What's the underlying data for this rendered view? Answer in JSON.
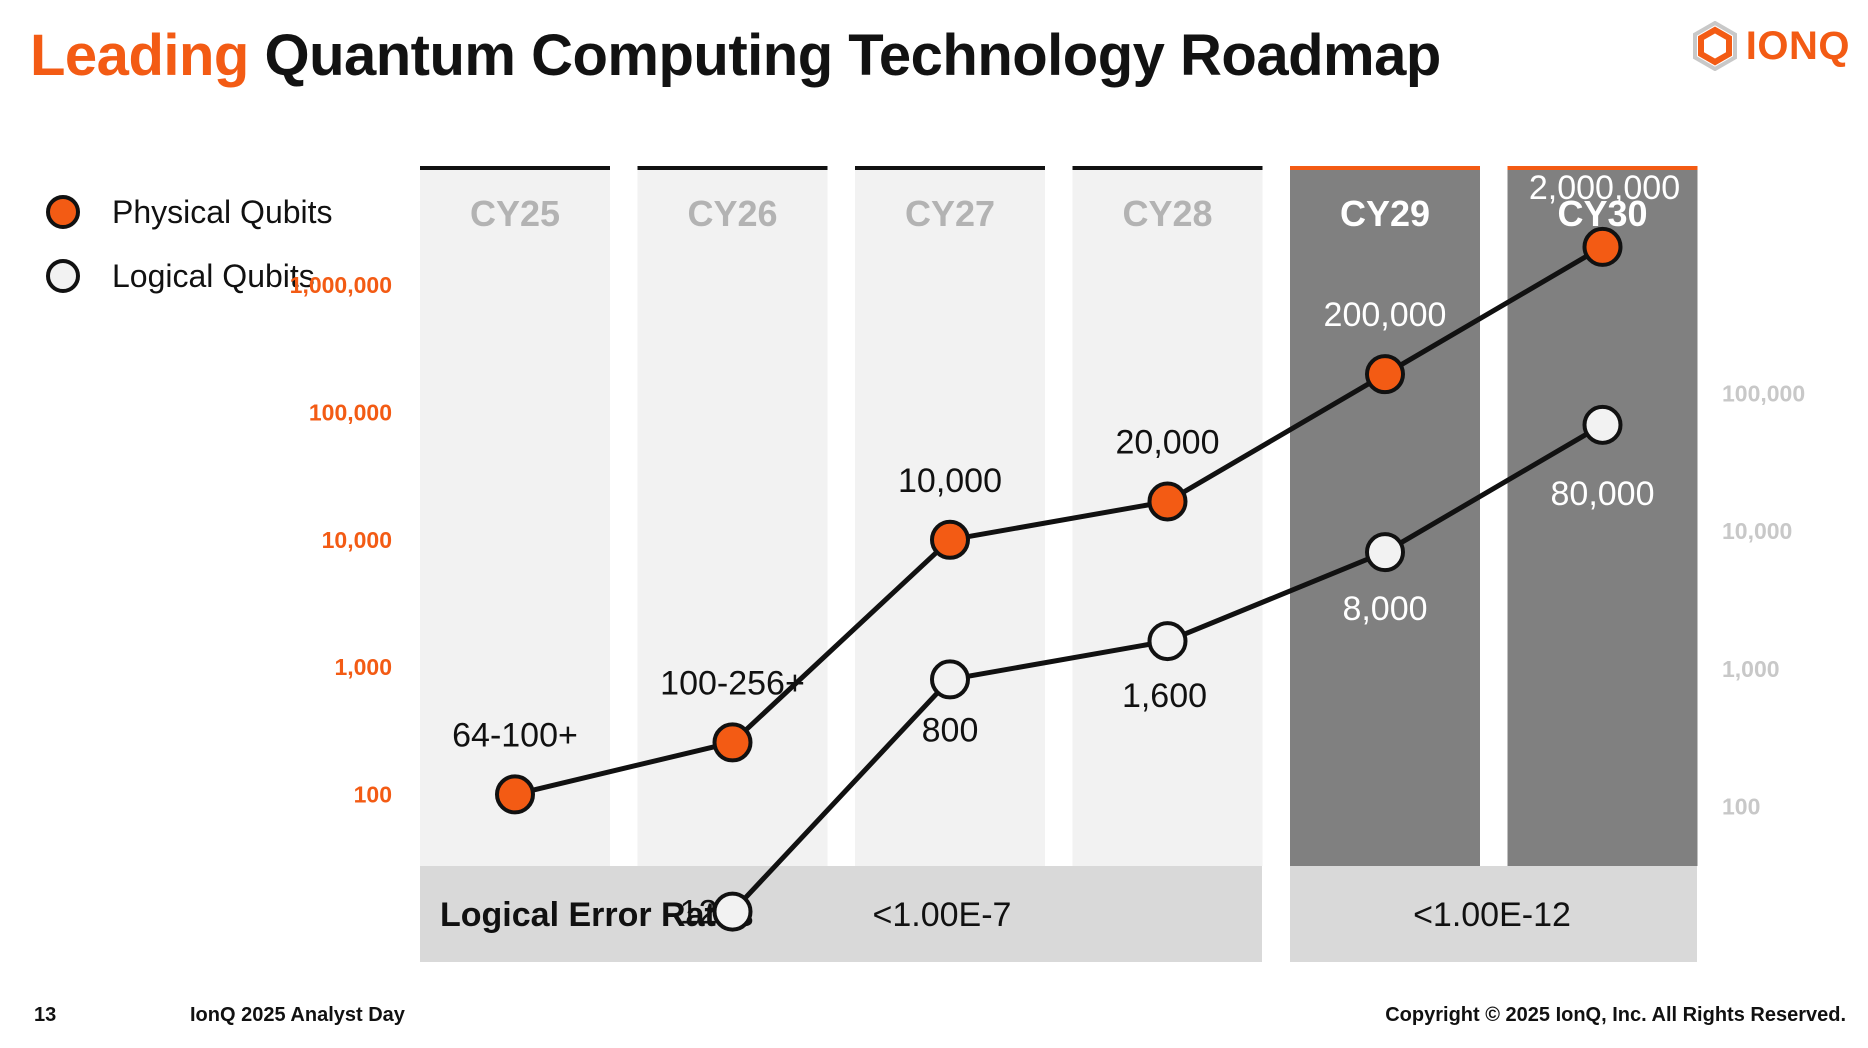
{
  "title": {
    "accent": "Leading",
    "rest": " Quantum Computing Technology Roadmap"
  },
  "logo": {
    "text": "IONQ",
    "icon": "ionq-hexagon-icon"
  },
  "colors": {
    "accent": "#f35b14",
    "dark": "#121212",
    "light_column": "#f2f2f2",
    "dark_column": "#808080",
    "error_bar": "#d9d9d9",
    "right_axis": "#c8c8c8"
  },
  "legend": [
    {
      "label": "Physical Qubits",
      "marker": "orange-filled-circle"
    },
    {
      "label": "Logical Qubits",
      "marker": "white-filled-circle"
    }
  ],
  "chart_data": {
    "type": "line",
    "categories": [
      "CY25",
      "CY26",
      "CY27",
      "CY28",
      "CY29",
      "CY30"
    ],
    "highlighted_categories": [
      "CY29",
      "CY30"
    ],
    "scale": "log",
    "left_axis": {
      "ticks": [
        "1,000,000",
        "100,000",
        "10,000",
        "1,000",
        "100"
      ]
    },
    "right_axis": {
      "ticks": [
        "100,000",
        "10,000",
        "1,000",
        "100"
      ]
    },
    "series": [
      {
        "name": "Physical Qubits",
        "x": [
          "CY25",
          "CY26",
          "CY27",
          "CY28",
          "CY29",
          "CY30"
        ],
        "values": [
          100,
          256,
          10000,
          20000,
          200000,
          2000000
        ],
        "labels": [
          "64-100+",
          "100-256+",
          "10,000",
          "20,000",
          "200,000",
          "2,000,000"
        ]
      },
      {
        "name": "Logical Qubits",
        "x": [
          "CY26",
          "CY27",
          "CY28",
          "CY29",
          "CY30"
        ],
        "values": [
          12,
          800,
          1600,
          8000,
          80000
        ],
        "labels": [
          "12",
          "800",
          "1,600",
          "8,000",
          "80,000"
        ]
      }
    ],
    "error_rates": {
      "label": "Logical Error Rates",
      "ranges": [
        {
          "from": "CY25",
          "to": "CY28",
          "value": "<1.00E-7"
        },
        {
          "from": "CY29",
          "to": "CY30",
          "value": "<1.00E-12"
        }
      ]
    }
  },
  "footer": {
    "page": "13",
    "event": "IonQ 2025 Analyst Day",
    "copyright": "Copyright © 2025 IonQ, Inc. All Rights Reserved."
  }
}
